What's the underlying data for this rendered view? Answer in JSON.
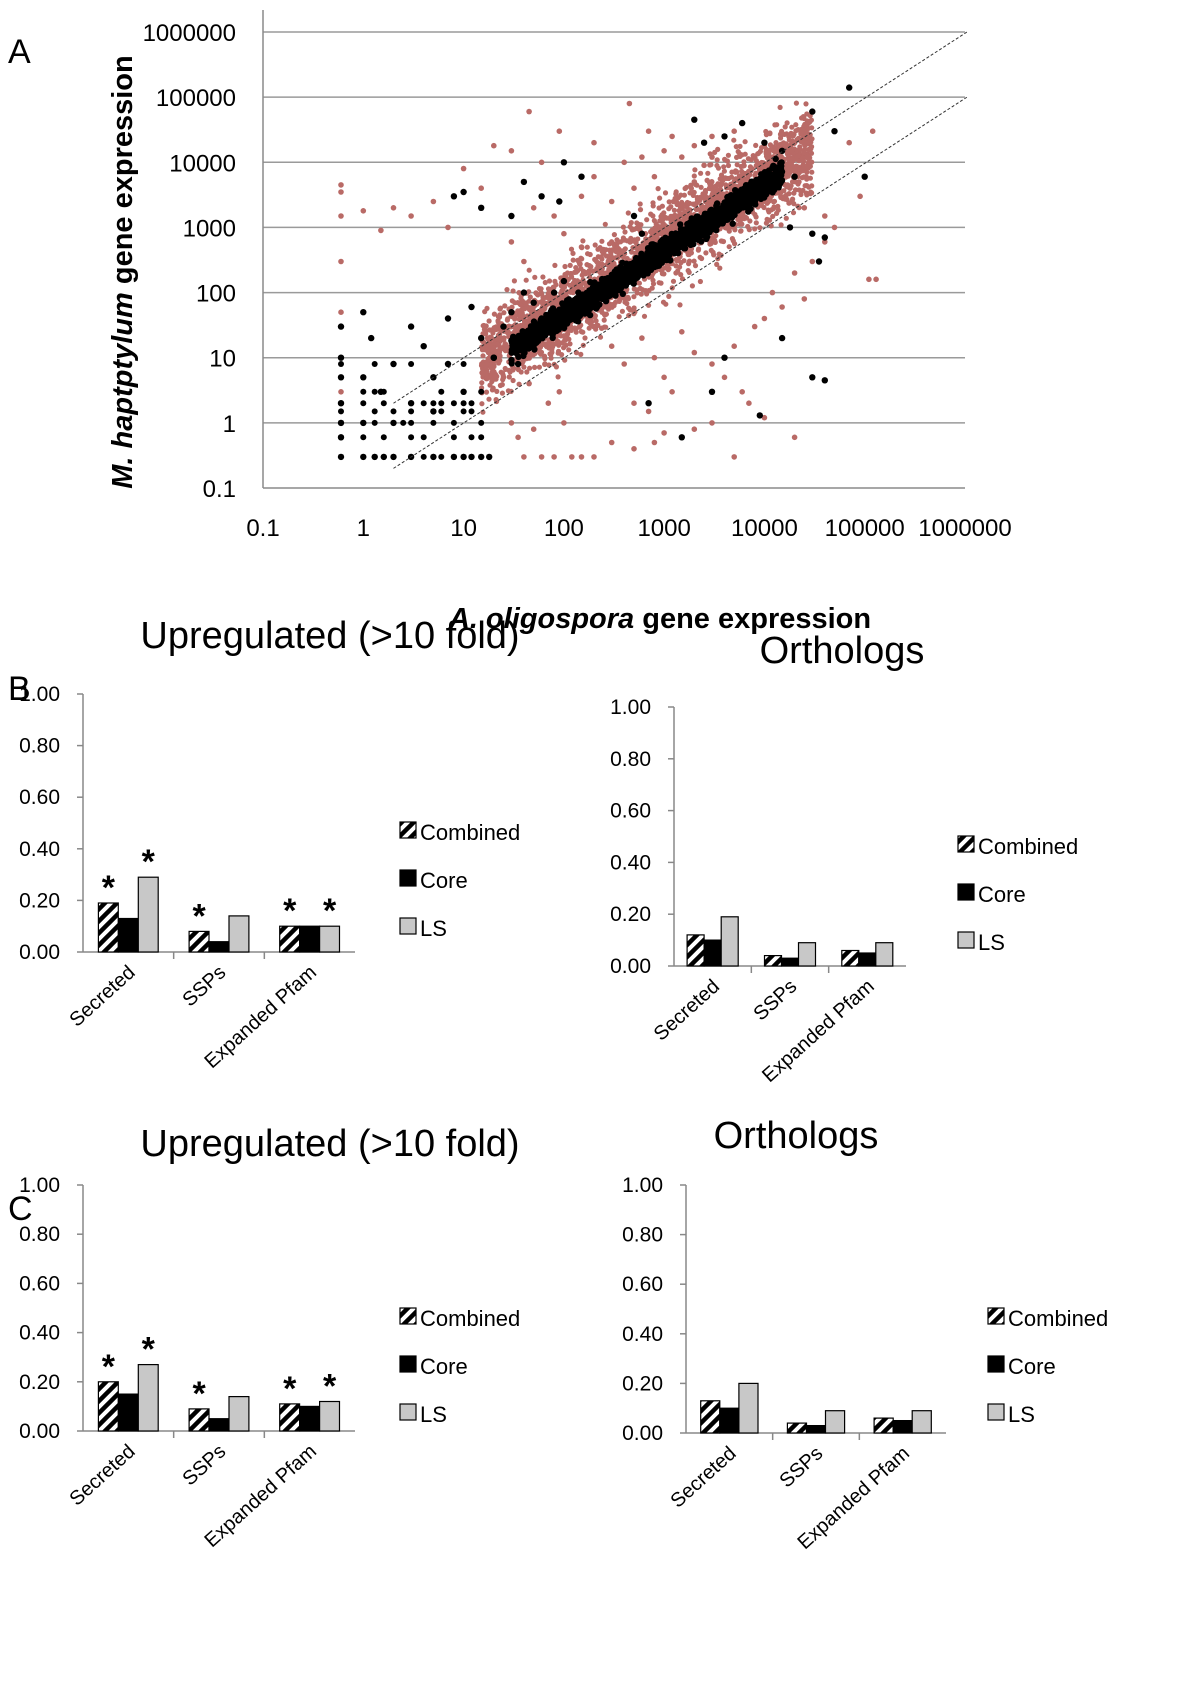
{
  "figure": {
    "panel_labels": [
      "A",
      "B",
      "C"
    ]
  },
  "chart_data": [
    {
      "type": "scatter",
      "panel": "A",
      "xlabel_italic": "A. oligospora",
      "xlabel_rest": " gene expression",
      "ylabel_italic": "M. haptptylum",
      "ylabel_rest": " gene expression",
      "xscale": "log",
      "yscale": "log",
      "xlim": [
        0.1,
        1000000
      ],
      "ylim": [
        0.1,
        1000000
      ],
      "x_ticks": [
        "0.1",
        "1",
        "10",
        "100",
        "1000",
        "10000",
        "100000",
        "1000000"
      ],
      "y_ticks": [
        "0.1",
        "1",
        "10",
        "100",
        "1000",
        "10000",
        "100000",
        "1000000"
      ],
      "grid": "horizontal",
      "reference_lines": [
        {
          "style": "dashed",
          "slope": 1,
          "y_over_x": 1
        },
        {
          "style": "dashed",
          "slope": 1,
          "y_over_x": 0.1
        }
      ],
      "series": [
        {
          "color": "#b96a66",
          "description_points": [
            [
              0.6,
              4500
            ],
            [
              0.6,
              3500
            ],
            [
              0.6,
              1500
            ],
            [
              0.6,
              300
            ],
            [
              0.6,
              50
            ],
            [
              0.6,
              3
            ],
            [
              1,
              1800
            ],
            [
              1.5,
              900
            ],
            [
              2,
              2000
            ],
            [
              3,
              1500
            ],
            [
              5,
              2500
            ],
            [
              7,
              1000
            ],
            [
              10,
              8000
            ],
            [
              15,
              4000
            ],
            [
              20,
              18000
            ],
            [
              30,
              15000
            ],
            [
              45,
              60000
            ],
            [
              60,
              10000
            ],
            [
              90,
              30000
            ],
            [
              200,
              20000
            ],
            [
              450,
              80000
            ],
            [
              700,
              30000
            ],
            [
              1200,
              25000
            ],
            [
              2000,
              18000
            ],
            [
              2500,
              9000
            ],
            [
              3000,
              25000
            ],
            [
              150,
              3000
            ],
            [
              200,
              6000
            ],
            [
              300,
              2500
            ],
            [
              400,
              10000
            ],
            [
              500,
              4000
            ],
            [
              600,
              12000
            ],
            [
              800,
              6000
            ],
            [
              1000,
              15000
            ],
            [
              1500,
              12000
            ],
            [
              2000,
              5000
            ],
            [
              80,
              1500
            ],
            [
              100,
              800
            ],
            [
              150,
              500
            ],
            [
              50,
              2000
            ],
            [
              30,
              600
            ],
            [
              40,
              300
            ],
            [
              200,
              30
            ],
            [
              300,
              15
            ],
            [
              400,
              8
            ],
            [
              600,
              20
            ],
            [
              800,
              10
            ],
            [
              1000,
              5
            ],
            [
              1500,
              25
            ],
            [
              2000,
              12
            ],
            [
              3000,
              8
            ],
            [
              5000,
              15
            ],
            [
              8000,
              30
            ],
            [
              10000,
              40
            ],
            [
              12000,
              100
            ],
            [
              15000,
              60
            ],
            [
              20000,
              200
            ],
            [
              25000,
              80
            ],
            [
              30000,
              300
            ],
            [
              40000,
              1500
            ],
            [
              50000,
              1000
            ],
            [
              70000,
              20000
            ],
            [
              90000,
              3000
            ],
            [
              120000,
              30000
            ],
            [
              110000,
              160
            ],
            [
              130000,
              160
            ],
            [
              40000,
              600
            ],
            [
              25000,
              2000
            ],
            [
              18000,
              4000
            ],
            [
              15000,
              8000
            ],
            [
              10000,
              20000
            ],
            [
              5000,
              30000
            ],
            [
              3000,
              12000
            ],
            [
              100,
              1
            ],
            [
              200,
              0.3
            ],
            [
              40,
              0.3
            ],
            [
              60,
              0.3
            ],
            [
              80,
              0.3
            ],
            [
              120,
              0.3
            ],
            [
              150,
              0.3
            ],
            [
              300,
              0.5
            ],
            [
              500,
              0.4
            ],
            [
              800,
              0.5
            ],
            [
              1000,
              0.7
            ],
            [
              2000,
              0.8
            ],
            [
              5000,
              0.3
            ],
            [
              20000,
              0.6
            ],
            [
              10000,
              1.2
            ],
            [
              7000,
              2
            ],
            [
              30,
              1
            ],
            [
              50,
              0.8
            ],
            [
              70,
              2
            ],
            [
              90,
              3
            ],
            [
              25,
              5
            ],
            [
              35,
              0.6
            ],
            [
              45,
              4
            ],
            [
              500,
              2
            ],
            [
              700,
              1.5
            ],
            [
              1200,
              3
            ],
            [
              3000,
              1
            ],
            [
              4000,
              5
            ],
            [
              6000,
              3
            ]
          ]
        },
        {
          "color": "#000000",
          "description_points": [
            [
              0.6,
              30
            ],
            [
              0.6,
              10
            ],
            [
              0.6,
              5
            ],
            [
              0.6,
              2
            ],
            [
              0.6,
              1
            ],
            [
              0.6,
              0.6
            ],
            [
              0.6,
              0.3
            ],
            [
              1,
              0.3
            ],
            [
              1.3,
              0.3
            ],
            [
              1.6,
              0.3
            ],
            [
              2,
              0.3
            ],
            [
              3,
              0.3
            ],
            [
              5,
              0.3
            ],
            [
              8,
              0.3
            ],
            [
              10,
              0.3
            ],
            [
              12,
              0.3
            ],
            [
              15,
              0.3
            ],
            [
              18,
              0.3
            ],
            [
              1,
              50
            ],
            [
              1,
              5
            ],
            [
              1,
              1
            ],
            [
              1.2,
              20
            ],
            [
              1.5,
              3
            ],
            [
              2,
              1
            ],
            [
              2,
              8
            ],
            [
              3,
              30
            ],
            [
              3,
              2
            ],
            [
              4,
              15
            ],
            [
              5,
              1.5
            ],
            [
              5,
              5
            ],
            [
              7,
              40
            ],
            [
              7,
              8
            ],
            [
              10,
              3
            ],
            [
              12,
              60
            ],
            [
              15,
              20
            ],
            [
              20,
              10
            ],
            [
              8,
              3000
            ],
            [
              10,
              3500
            ],
            [
              15,
              2000
            ],
            [
              30,
              1500
            ],
            [
              40,
              5000
            ],
            [
              60,
              3000
            ],
            [
              90,
              2500
            ],
            [
              100,
              10000
            ],
            [
              150,
              6000
            ],
            [
              500,
              1500
            ],
            [
              600,
              800
            ],
            [
              2000,
              45000
            ],
            [
              2500,
              20000
            ],
            [
              4000,
              25000
            ],
            [
              6000,
              40000
            ],
            [
              10000,
              20000
            ],
            [
              15000,
              15000
            ],
            [
              30000,
              60000
            ],
            [
              50000,
              30000
            ],
            [
              70000,
              140000
            ],
            [
              100000,
              6000
            ],
            [
              30000,
              800
            ],
            [
              35000,
              300
            ],
            [
              40000,
              700
            ],
            [
              10000,
              5000
            ],
            [
              8000,
              4000
            ],
            [
              20000,
              6000
            ],
            [
              18000,
              1000
            ],
            [
              30000,
              5
            ],
            [
              40000,
              4.5
            ],
            [
              15000,
              20
            ],
            [
              9000,
              1.3
            ],
            [
              1500,
              0.6
            ],
            [
              4000,
              10
            ],
            [
              3000,
              3
            ],
            [
              700,
              2
            ],
            [
              20,
              10
            ],
            [
              30,
              50
            ],
            [
              50,
              70
            ],
            [
              80,
              100
            ],
            [
              100,
              150
            ],
            [
              200,
              100
            ],
            [
              40,
              100
            ],
            [
              60,
              40
            ],
            [
              25,
              30
            ],
            [
              35,
              8
            ],
            [
              45,
              20
            ]
          ]
        }
      ],
      "dense_diagonal_cloud": {
        "x_range": [
          30,
          15000
        ],
        "color": "#000000",
        "halo_color": "#b96a66"
      }
    },
    {
      "type": "bar",
      "panel": "B",
      "title": "Upregulated (>10 fold)",
      "categories": [
        "Secreted",
        "SSPs",
        "Expanded Pfam"
      ],
      "ylim": [
        0,
        1
      ],
      "y_ticks": [
        "0.00",
        "0.20",
        "0.40",
        "0.60",
        "0.80",
        "1.00"
      ],
      "series": [
        {
          "name": "Combined",
          "values": [
            0.19,
            0.08,
            0.1
          ],
          "pattern": "hatch"
        },
        {
          "name": "Core",
          "values": [
            0.13,
            0.04,
            0.1
          ],
          "color": "#000000"
        },
        {
          "name": "LS",
          "values": [
            0.29,
            0.14,
            0.1
          ],
          "color": "#c8c8c8"
        }
      ],
      "annotations": [
        {
          "category": "Secreted",
          "series": "Combined",
          "text": "*"
        },
        {
          "category": "Secreted",
          "series": "LS",
          "text": "*"
        },
        {
          "category": "SSPs",
          "series": "Combined",
          "text": "*"
        },
        {
          "category": "Expanded Pfam",
          "series": "Combined",
          "text": "*"
        },
        {
          "category": "Expanded Pfam",
          "series": "LS",
          "text": "*"
        }
      ],
      "legend": "right"
    },
    {
      "type": "bar",
      "panel": "B",
      "title": "Orthologs",
      "categories": [
        "Secreted",
        "SSPs",
        "Expanded Pfam"
      ],
      "ylim": [
        0,
        1
      ],
      "y_ticks": [
        "0.00",
        "0.20",
        "0.40",
        "0.60",
        "0.80",
        "1.00"
      ],
      "series": [
        {
          "name": "Combined",
          "values": [
            0.12,
            0.04,
            0.06
          ],
          "pattern": "hatch"
        },
        {
          "name": "Core",
          "values": [
            0.1,
            0.03,
            0.05
          ],
          "color": "#000000"
        },
        {
          "name": "LS",
          "values": [
            0.19,
            0.09,
            0.09
          ],
          "color": "#c8c8c8"
        }
      ],
      "annotations": [],
      "legend": "right"
    },
    {
      "type": "bar",
      "panel": "C",
      "title": "Upregulated (>10 fold)",
      "categories": [
        "Secreted",
        "SSPs",
        "Expanded Pfam"
      ],
      "ylim": [
        0,
        1
      ],
      "y_ticks": [
        "0.00",
        "0.20",
        "0.40",
        "0.60",
        "0.80",
        "1.00"
      ],
      "series": [
        {
          "name": "Combined",
          "values": [
            0.2,
            0.09,
            0.11
          ],
          "pattern": "hatch"
        },
        {
          "name": "Core",
          "values": [
            0.15,
            0.05,
            0.1
          ],
          "color": "#000000"
        },
        {
          "name": "LS",
          "values": [
            0.27,
            0.14,
            0.12
          ],
          "color": "#c8c8c8"
        }
      ],
      "annotations": [
        {
          "category": "Secreted",
          "series": "Combined",
          "text": "*"
        },
        {
          "category": "Secreted",
          "series": "LS",
          "text": "*"
        },
        {
          "category": "SSPs",
          "series": "Combined",
          "text": "*"
        },
        {
          "category": "Expanded Pfam",
          "series": "Combined",
          "text": "*"
        },
        {
          "category": "Expanded Pfam",
          "series": "LS",
          "text": "*"
        }
      ],
      "legend": "right"
    },
    {
      "type": "bar",
      "panel": "C",
      "title": "Orthologs",
      "categories": [
        "Secreted",
        "SSPs",
        "Expanded Pfam"
      ],
      "ylim": [
        0,
        1
      ],
      "y_ticks": [
        "0.00",
        "0.20",
        "0.40",
        "0.60",
        "0.80",
        "1.00"
      ],
      "series": [
        {
          "name": "Combined",
          "values": [
            0.13,
            0.04,
            0.06
          ],
          "pattern": "hatch"
        },
        {
          "name": "Core",
          "values": [
            0.1,
            0.03,
            0.05
          ],
          "color": "#000000"
        },
        {
          "name": "LS",
          "values": [
            0.2,
            0.09,
            0.09
          ],
          "color": "#c8c8c8"
        }
      ],
      "annotations": [],
      "legend": "right"
    }
  ]
}
